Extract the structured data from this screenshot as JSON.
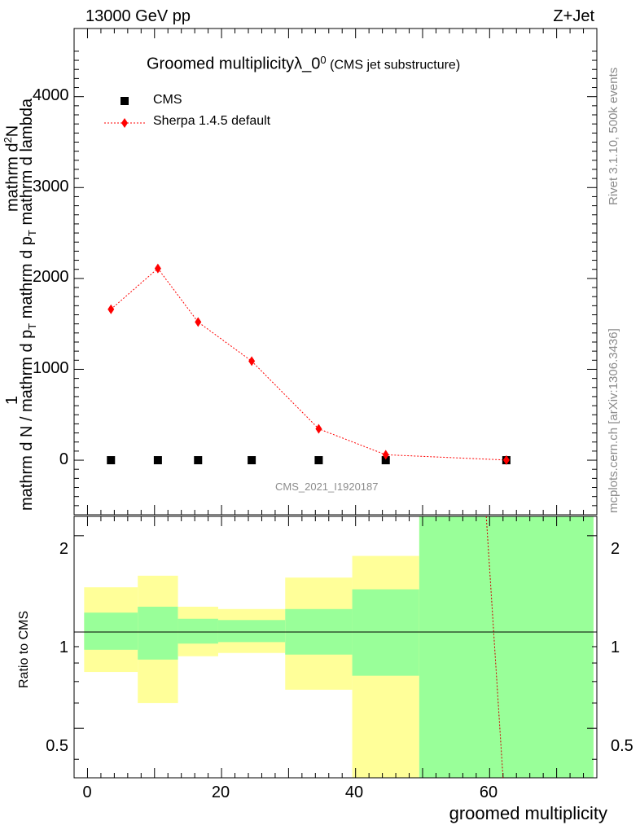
{
  "header": {
    "energy": "13000 GeV pp",
    "process": "Z+Jet"
  },
  "title": {
    "main": "Groomed multiplicityλ_0",
    "sup": "0",
    "sub": "(CMS jet substructure)"
  },
  "side": {
    "rivet": "Rivet 3.1.10,  500k events",
    "mcplots": "mcplots.cern.ch [arXiv:1306.3436]"
  },
  "watermark": "CMS_2021_I1920187",
  "legend": [
    {
      "label": "CMS",
      "marker": "square",
      "color": "#000000"
    },
    {
      "label": "Sherpa 1.4.5 default",
      "marker": "diamond",
      "color": "#ff0000"
    }
  ],
  "ylabel": {
    "one": "1",
    "num_main": "mathrm d",
    "num_sup": "2",
    "num_end": "N",
    "den_a": "mathrm d N / mathrm d p",
    "den_b": "T",
    "den_c": " mathrm d p",
    "den_d": "T",
    "den_e": " mathrm d lambda"
  },
  "ratio_ylabel": "Ratio to CMS",
  "xlabel": "groomed multiplicity",
  "main_ticks": [
    "0",
    "1000",
    "2000",
    "3000",
    "4000"
  ],
  "ratio_ticks": [
    "0.5",
    "1",
    "2"
  ],
  "x_ticks": [
    "0",
    "20",
    "40",
    "60"
  ],
  "chart_data": {
    "type": "scatter",
    "x_range": [
      -2,
      76
    ],
    "main_ylim": [
      -600,
      4750
    ],
    "ratio_ylim": [
      0.35,
      2.3
    ],
    "ratio_log": true,
    "series": [
      {
        "name": "CMS",
        "x": [
          3.5,
          10.5,
          16.5,
          24.5,
          34.5,
          44.5,
          62.5
        ],
        "y": [
          0,
          0,
          0,
          0,
          0,
          0,
          0
        ]
      },
      {
        "name": "Sherpa 1.4.5 default",
        "x": [
          3.5,
          10.5,
          16.5,
          24.5,
          34.5,
          44.5,
          62.5
        ],
        "y": [
          1660,
          2110,
          1520,
          1090,
          345,
          60,
          2
        ]
      }
    ],
    "ratio_bands": [
      {
        "x0": -0.5,
        "x1": 7.5,
        "yellow": [
          0.75,
          1.38
        ],
        "green": [
          0.88,
          1.15
        ]
      },
      {
        "x0": 7.5,
        "x1": 13.5,
        "yellow": [
          0.6,
          1.5
        ],
        "green": [
          0.82,
          1.2
        ]
      },
      {
        "x0": 13.5,
        "x1": 19.5,
        "yellow": [
          0.84,
          1.2
        ],
        "green": [
          0.92,
          1.1
        ]
      },
      {
        "x0": 19.5,
        "x1": 29.5,
        "yellow": [
          0.86,
          1.18
        ],
        "green": [
          0.93,
          1.09
        ]
      },
      {
        "x0": 29.5,
        "x1": 39.5,
        "yellow": [
          0.66,
          1.48
        ],
        "green": [
          0.85,
          1.18
        ]
      },
      {
        "x0": 39.5,
        "x1": 49.5,
        "yellow": [
          0.35,
          1.73
        ],
        "green": [
          0.73,
          1.36
        ]
      },
      {
        "x0": 49.5,
        "x1": 75.5,
        "yellow": [
          0.35,
          2.3
        ],
        "green": [
          0.35,
          2.3
        ]
      }
    ],
    "ratio_sherpa_line": {
      "x": [
        59.5,
        62.0
      ],
      "y": [
        2.3,
        0.35
      ]
    }
  }
}
